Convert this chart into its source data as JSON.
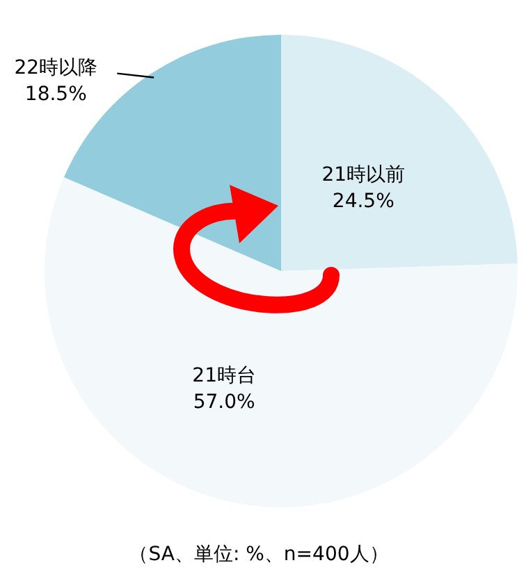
{
  "chart_data": {
    "type": "pie",
    "categories": [
      "21時以前",
      "21時台",
      "22時以降"
    ],
    "values": [
      24.5,
      57.0,
      18.5
    ],
    "colors": [
      "#daeef3",
      "#f3f8fa",
      "#93cddd"
    ],
    "value_labels": [
      "24.5%",
      "57.0%",
      "18.5%"
    ],
    "annotations": [
      "（SA、単位: %、n=400人）"
    ]
  }
}
